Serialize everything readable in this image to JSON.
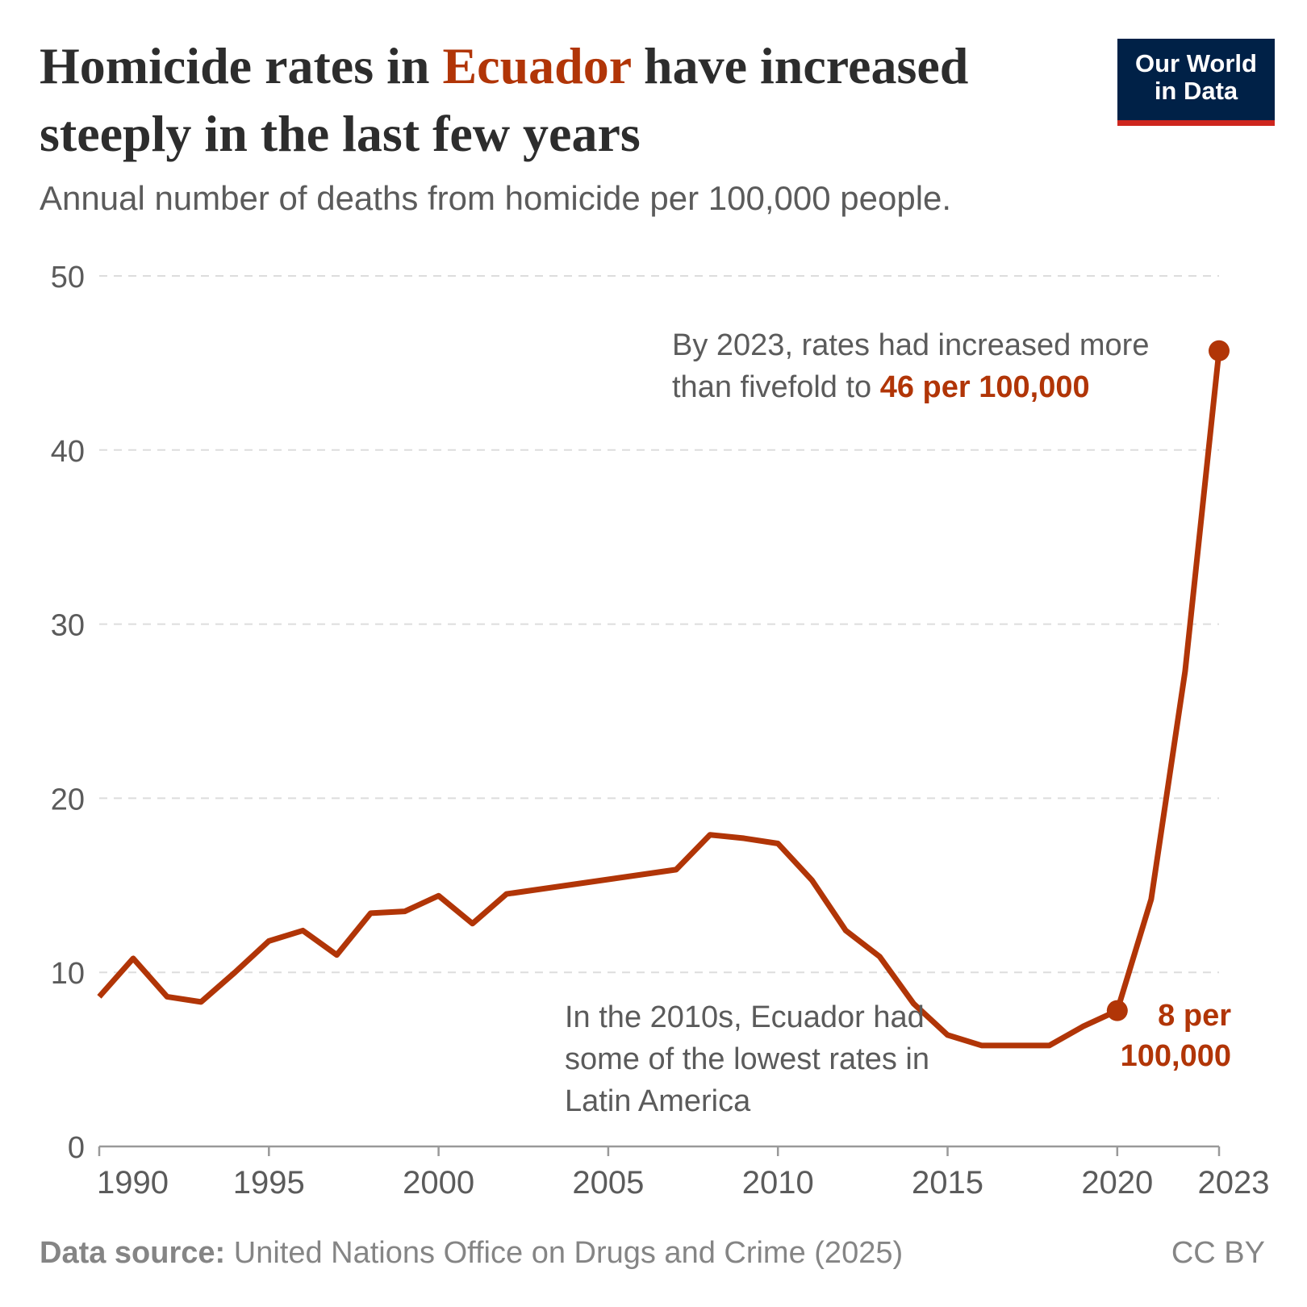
{
  "title": {
    "before": "Homicide rates in ",
    "highlight": "Ecuador",
    "after": " have increased steeply in the last few years"
  },
  "subtitle": "Annual number of deaths from homicide per 100,000 people.",
  "logo": {
    "line1": "Our World",
    "line2": "in Data"
  },
  "footer": {
    "label": "Data source:",
    "source": "United Nations Office on Drugs and Crime (2025)",
    "license": "CC BY"
  },
  "colors": {
    "series": "#b13507",
    "accent": "#b13507",
    "logo_bg": "#002147",
    "logo_bar": "#ce261e"
  },
  "annotations": {
    "top": {
      "text": "By 2023, rates had increased more than fivefold to ",
      "highlight": "46 per 100,000"
    },
    "bottom": "In the 2010s, Ecuador had some of the lowest rates in Latin America",
    "point_2020": {
      "line1": "8 per",
      "line2": "100,000"
    }
  },
  "chart_data": {
    "type": "line",
    "title": "Homicide rates in Ecuador have increased steeply in the last few years",
    "subtitle": "Annual number of deaths from homicide per 100,000 people.",
    "x": [
      1990,
      1991,
      1992,
      1993,
      1994,
      1995,
      1996,
      1997,
      1998,
      1999,
      2000,
      2001,
      2002,
      2007,
      2008,
      2009,
      2010,
      2011,
      2012,
      2013,
      2014,
      2015,
      2016,
      2017,
      2018,
      2019,
      2020,
      2021,
      2022,
      2023
    ],
    "series": [
      {
        "values": [
          8.6,
          10.8,
          8.6,
          8.3,
          10.0,
          11.8,
          12.4,
          11.0,
          13.4,
          13.5,
          14.4,
          12.8,
          14.5,
          15.9,
          17.9,
          17.7,
          17.4,
          15.3,
          12.4,
          10.9,
          8.2,
          6.4,
          5.8,
          5.8,
          5.8,
          6.9,
          7.8,
          14.2,
          27.3,
          45.7
        ]
      }
    ],
    "highlight_points": [
      2020,
      2023
    ],
    "xlim": [
      1990,
      2023
    ],
    "ylim": [
      0,
      50
    ],
    "xticks": [
      "1990",
      "1995",
      "2000",
      "2005",
      "2010",
      "2015",
      "2020",
      "2023"
    ],
    "yticks": [
      "0",
      "10",
      "20",
      "30",
      "40",
      "50"
    ],
    "grid": "horizontal dashed",
    "legend": "none"
  }
}
